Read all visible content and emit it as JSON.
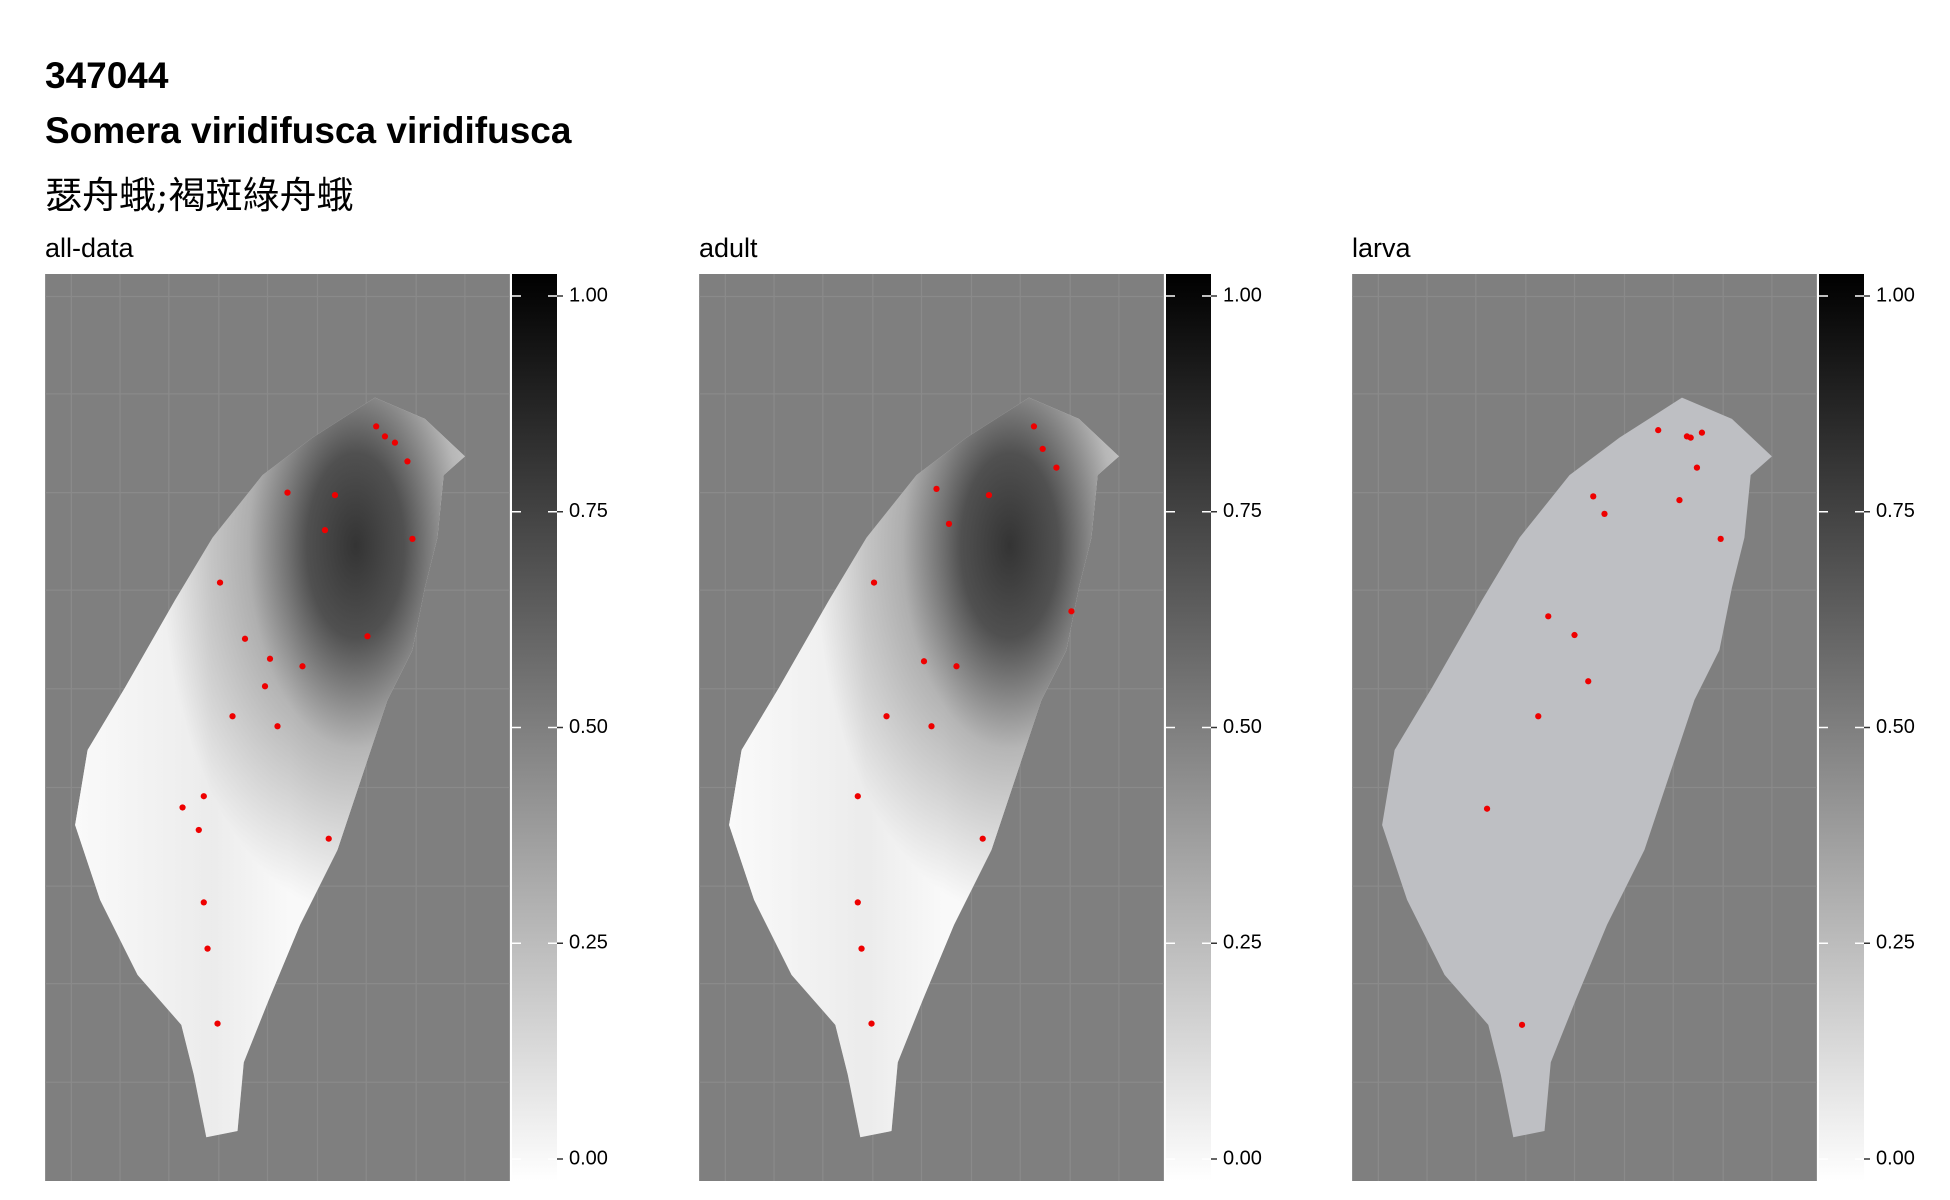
{
  "header": {
    "id": "347044",
    "scientific_name": "Somera viridifusca viridifusca",
    "common_name": "瑟舟蛾;褐斑綠舟蛾"
  },
  "panels": [
    {
      "title": "all-data"
    },
    {
      "title": "adult"
    },
    {
      "title": "larva"
    }
  ],
  "legend": {
    "ticks": [
      {
        "value": 0,
        "label": "0.00"
      },
      {
        "value": 0.25,
        "label": "0.25"
      },
      {
        "value": 0.5,
        "label": "0.50"
      },
      {
        "value": 0.75,
        "label": "0.75"
      },
      {
        "value": 1,
        "label": "1.00"
      }
    ],
    "range": [
      0,
      1
    ]
  }
}
